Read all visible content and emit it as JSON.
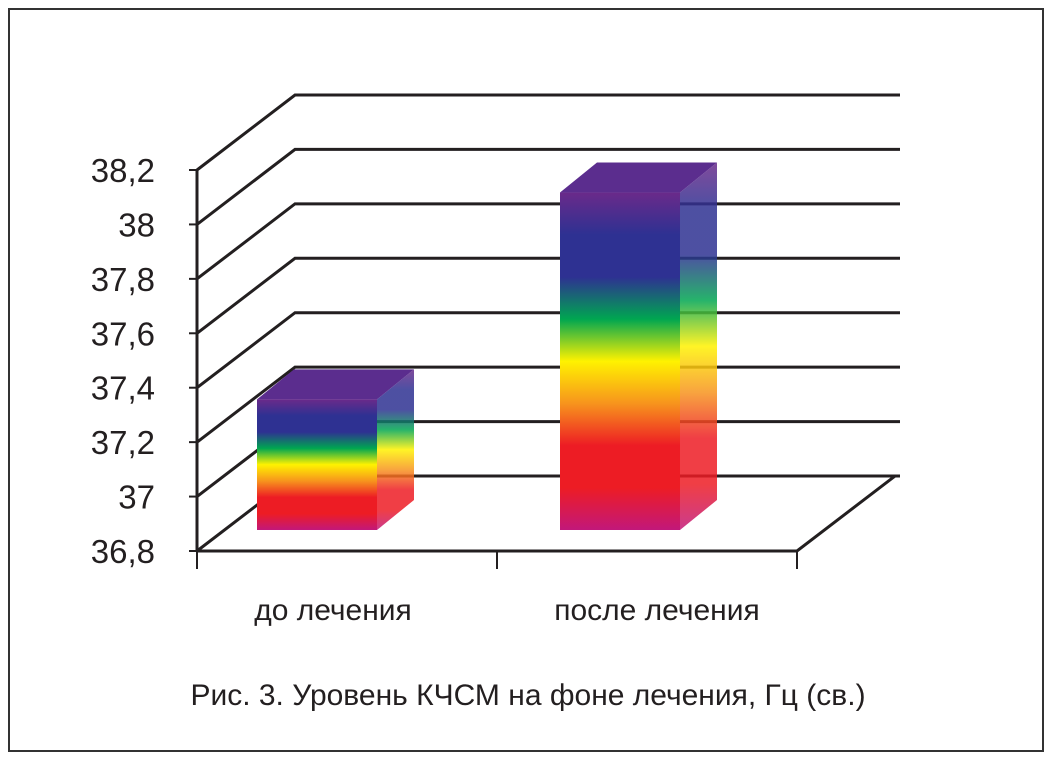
{
  "chart_data": {
    "type": "bar",
    "style": "3d-column",
    "categories": [
      "до лечения",
      "после лечения"
    ],
    "values": [
      37.28,
      38.04
    ],
    "ylim": [
      36.8,
      38.2
    ],
    "yticks": [
      "36,8",
      "37",
      "37,2",
      "37,4",
      "37,6",
      "37,8",
      "38",
      "38,2"
    ],
    "ytick_values": [
      36.8,
      37.0,
      37.2,
      37.4,
      37.6,
      37.8,
      38.0,
      38.2
    ],
    "grid": true,
    "caption": "Рис. 3. Уровень КЧСМ на фоне лечения, Гц (св.)",
    "gradient_colors": [
      "#6a2a8a",
      "#2e3192",
      "#2e3192",
      "#00a651",
      "#fff200",
      "#f7941d",
      "#ed1c24",
      "#ed1c24",
      "#c2187a"
    ]
  }
}
